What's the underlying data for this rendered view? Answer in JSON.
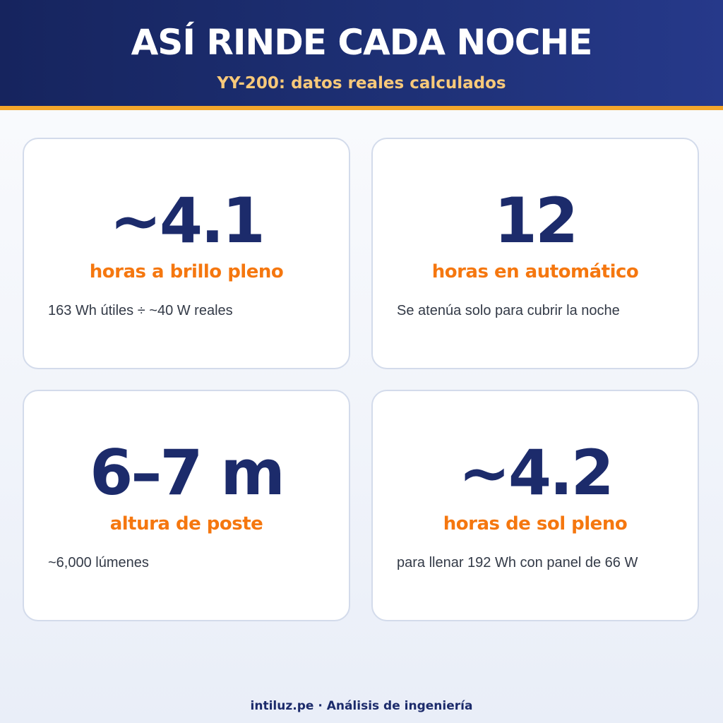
{
  "header": {
    "title": "ASÍ RINDE CADA NOCHE",
    "subtitle": "YY-200: datos reales calculados"
  },
  "cards": [
    {
      "value": "~4.1",
      "label": "horas a brillo pleno",
      "note": "163 Wh útiles ÷ ~40 W reales"
    },
    {
      "value": "12",
      "label": "horas en automático",
      "note": "Se atenúa solo para cubrir la noche"
    },
    {
      "value": "6–7 m",
      "label": "altura de poste",
      "note": "~6,000 lúmenes"
    },
    {
      "value": "~4.2",
      "label": "horas de sol pleno",
      "note": "para llenar 192 Wh con panel de 66 W"
    }
  ],
  "footer": {
    "text": "intiluz.pe · Análisis de ingeniería"
  },
  "colors": {
    "header_bg": "#1d2f73",
    "accent_bar": "#f4a62a",
    "subtitle": "#f8c97a",
    "value": "#1c2b6b",
    "label": "#f5770f"
  }
}
